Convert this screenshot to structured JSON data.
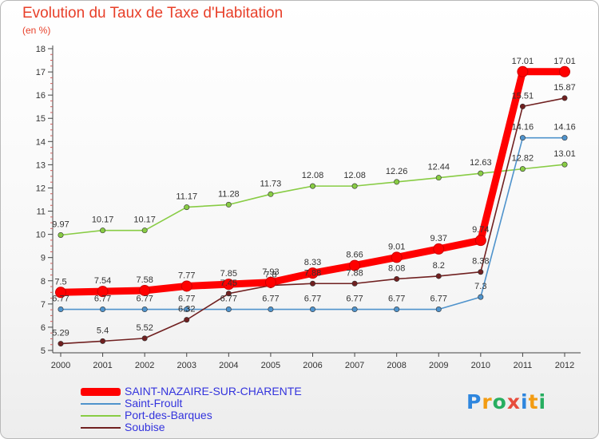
{
  "title": "Evolution du Taux de Taxe d'Habitation",
  "subtitle": "(en %)",
  "logo": {
    "letters": [
      "P",
      "r",
      "o",
      "x",
      "i",
      "t",
      "i"
    ]
  },
  "chart_data": {
    "type": "line",
    "title": "Evolution du Taux de Taxe d'Habitation",
    "subtitle": "(en %)",
    "xlabel": "",
    "ylabel": "",
    "x": [
      2000,
      2001,
      2002,
      2003,
      2004,
      2005,
      2006,
      2007,
      2008,
      2009,
      2010,
      2011,
      2012
    ],
    "ylim": [
      5,
      18
    ],
    "y_ticks": [
      5,
      6,
      7,
      8,
      9,
      10,
      11,
      12,
      13,
      14,
      15,
      16,
      17,
      18
    ],
    "grid": false,
    "legend_position": "bottom-left",
    "series": [
      {
        "name": "SAINT-NAZAIRE-SUR-CHARENTE",
        "color": "#ff0000",
        "values": [
          7.5,
          7.54,
          7.58,
          7.77,
          7.85,
          7.93,
          8.33,
          8.66,
          9.01,
          9.37,
          9.74,
          17.01,
          17.01
        ],
        "labels": [
          "7.5",
          "7.54",
          "7.58",
          "7.77",
          "7.85",
          "7.93",
          "8.33",
          "8.66",
          "9.01",
          "9.37",
          "9.74",
          "17.01",
          "17.01"
        ]
      },
      {
        "name": "Saint-Froult",
        "color": "#4f93cc",
        "values": [
          6.77,
          6.77,
          6.77,
          6.77,
          6.77,
          6.77,
          6.77,
          6.77,
          6.77,
          6.77,
          7.3,
          14.16,
          14.16
        ],
        "labels": [
          "6.77",
          "6.77",
          "6.77",
          "6.77",
          "6.77",
          "6.77",
          "6.77",
          "6.77",
          "6.77",
          "6.77",
          "7.3",
          "14.16",
          "14.16"
        ]
      },
      {
        "name": "Port-des-Barques",
        "color": "#88cc44",
        "values": [
          9.97,
          10.17,
          10.17,
          11.17,
          11.28,
          11.73,
          12.08,
          12.08,
          12.26,
          12.44,
          12.63,
          12.82,
          13.01
        ],
        "labels": [
          "9.97",
          "10.17",
          "10.17",
          "11.17",
          "11.28",
          "11.73",
          "12.08",
          "12.08",
          "12.26",
          "12.44",
          "12.63",
          "12.82",
          "13.01"
        ]
      },
      {
        "name": "Soubise",
        "color": "#702020",
        "values": [
          5.29,
          5.4,
          5.52,
          6.32,
          7.45,
          7.8,
          7.88,
          7.88,
          8.08,
          8.2,
          8.38,
          15.51,
          15.87
        ],
        "labels": [
          "5.29",
          "5.4",
          "5.52",
          "6.32",
          "7.45",
          "7.8",
          "7.88",
          "7.88",
          "8.08",
          "8.2",
          "8.38",
          "15.51",
          "15.87"
        ]
      }
    ]
  }
}
